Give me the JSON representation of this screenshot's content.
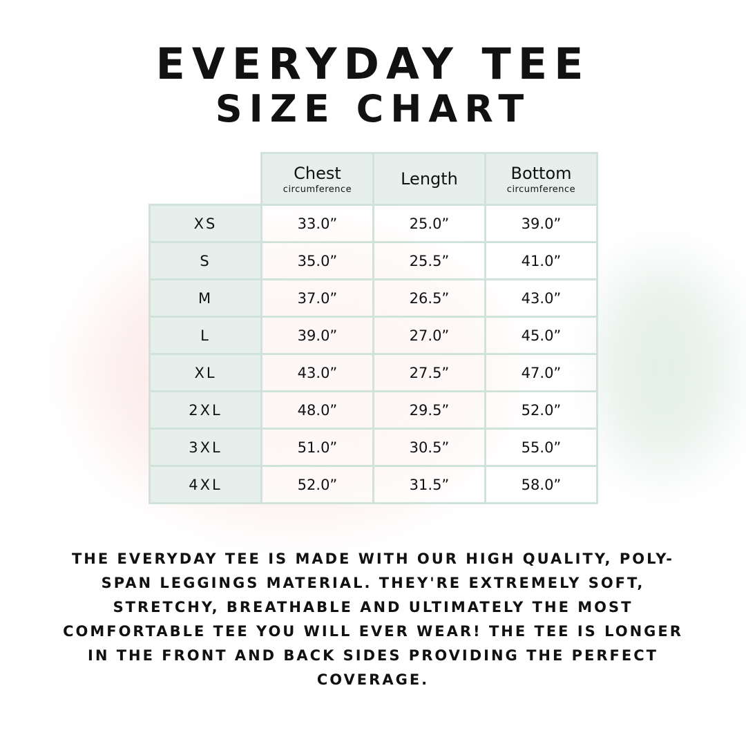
{
  "title_line1": "EVERYDAY TEE",
  "title_line2": "SIZE CHART",
  "columns": [
    {
      "main": "Chest",
      "sub": "circumference"
    },
    {
      "main": "Length",
      "sub": ""
    },
    {
      "main": "Bottom",
      "sub": "circumference"
    }
  ],
  "rows": [
    {
      "size": "XS",
      "chest": "33.0”",
      "length": "25.0”",
      "bottom": "39.0”"
    },
    {
      "size": "S",
      "chest": "35.0”",
      "length": "25.5”",
      "bottom": "41.0”"
    },
    {
      "size": "M",
      "chest": "37.0”",
      "length": "26.5”",
      "bottom": "43.0”"
    },
    {
      "size": "L",
      "chest": "39.0”",
      "length": "27.0”",
      "bottom": "45.0”"
    },
    {
      "size": "XL",
      "chest": "43.0”",
      "length": "27.5”",
      "bottom": "47.0”"
    },
    {
      "size": "2XL",
      "chest": "48.0”",
      "length": "29.5”",
      "bottom": "52.0”"
    },
    {
      "size": "3XL",
      "chest": "51.0”",
      "length": "30.5”",
      "bottom": "55.0”"
    },
    {
      "size": "4XL",
      "chest": "52.0”",
      "length": "31.5”",
      "bottom": "58.0”"
    }
  ],
  "description": "The Everyday Tee is made with our high quality, poly-span leggings material. They're extremely soft, stretchy, breathable and ultimately the most comfortable tee you will ever wear! The tee is longer in the front and back sides providing the perfect coverage.",
  "colors": {
    "border": "#cfe3da",
    "header_fill": "#e6efeb",
    "background_tint": "#fbe7e7"
  }
}
